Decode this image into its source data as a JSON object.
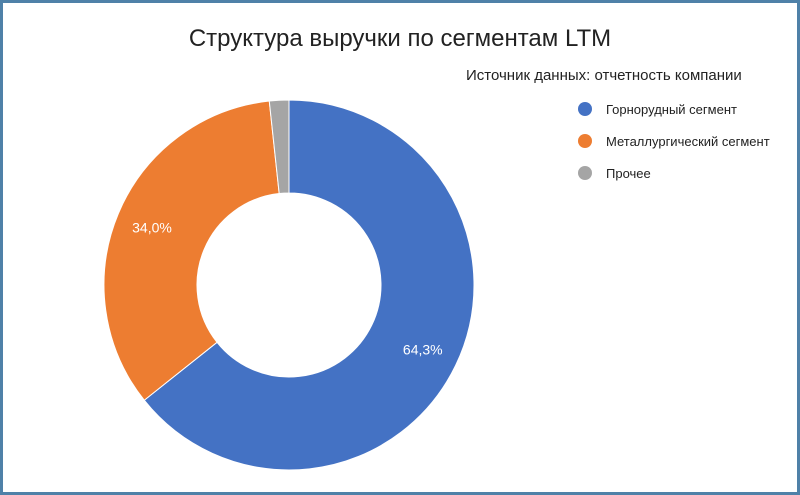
{
  "chart_data": {
    "type": "pie",
    "variant": "donut",
    "title": "Структура выручки по сегментам LTM",
    "subtitle": "Источник данных: отчетность компании",
    "legend_position": "right",
    "categories": [
      "Горнорудный сегмент",
      "Металлургический сегмент",
      "Прочее"
    ],
    "values": [
      64.3,
      34.0,
      1.7
    ],
    "data_labels": [
      "64,3%",
      "34,0%",
      ""
    ],
    "colors": [
      "#4472c4",
      "#ed7d31",
      "#a5a5a5"
    ]
  }
}
